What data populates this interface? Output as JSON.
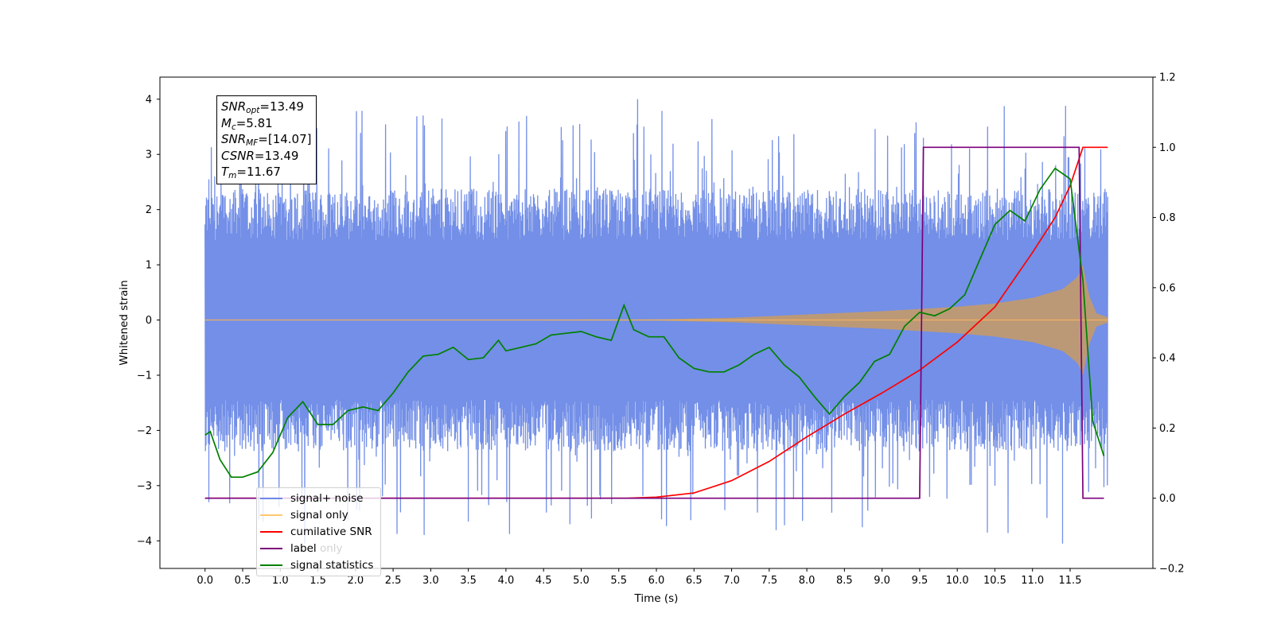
{
  "chart_data": {
    "type": "line",
    "xlabel": "Time (s)",
    "ylabel_left": "Whitened strain",
    "ylabel_right": "",
    "xlim": [
      -0.6,
      12.6
    ],
    "ylim_left": [
      -4.5,
      4.4
    ],
    "ylim_right": [
      -0.2,
      1.2
    ],
    "x_ticks": [
      "0.0",
      "0.5",
      "1.0",
      "1.5",
      "2.0",
      "2.5",
      "3.0",
      "3.5",
      "4.0",
      "4.5",
      "5.0",
      "5.5",
      "6.0",
      "6.5",
      "7.0",
      "7.5",
      "8.0",
      "8.5",
      "9.0",
      "9.5",
      "10.0",
      "10.5",
      "11.0",
      "11.5"
    ],
    "y_ticks_left": [
      "−4",
      "−3",
      "−2",
      "−1",
      "0",
      "1",
      "2",
      "3",
      "4"
    ],
    "y_ticks_right": [
      "−0.2",
      "0.0",
      "0.2",
      "0.4",
      "0.6",
      "0.8",
      "1.0",
      "1.2"
    ],
    "grid": false,
    "legend_position": "lower-left",
    "annotation": {
      "lines": [
        {
          "base": "SNR",
          "sub": "opt",
          "value": "=13.49"
        },
        {
          "base": "M",
          "sub": "c",
          "value": "=5.81"
        },
        {
          "base": "SNR",
          "sub": "MF",
          "value": "=[14.07]"
        },
        {
          "base": "CSNR",
          "sub": "",
          "value": "=13.49"
        },
        {
          "base": "T",
          "sub": "m",
          "value": "=11.67"
        }
      ]
    },
    "series": [
      {
        "name": "signal+ noise",
        "axis": "left",
        "color": "#6c89e6",
        "kind": "noise-band",
        "x_start": 0.0,
        "x_end": 12.0,
        "envelope_typical": 1.7,
        "extreme_peaks": [
          [
            0.05,
            2.55
          ],
          [
            3.15,
            3.65
          ],
          [
            4.98,
            3.55
          ],
          [
            9.55,
            3.3
          ],
          [
            11.44,
            3.88
          ],
          [
            0.05,
            -3.3
          ],
          [
            3.5,
            -3.65
          ],
          [
            4.85,
            -3.7
          ],
          [
            10.4,
            -3.85
          ],
          [
            11.4,
            -4.05
          ]
        ]
      },
      {
        "name": "signal only",
        "axis": "left",
        "color": "#c09a70",
        "kind": "chirp",
        "x_start": 0.0,
        "x_end": 12.0,
        "amplitude": [
          [
            0.0,
            0.0
          ],
          [
            6.0,
            0.01
          ],
          [
            7.0,
            0.04
          ],
          [
            8.0,
            0.1
          ],
          [
            9.0,
            0.16
          ],
          [
            10.0,
            0.24
          ],
          [
            10.5,
            0.3
          ],
          [
            11.0,
            0.4
          ],
          [
            11.4,
            0.56
          ],
          [
            11.6,
            0.78
          ],
          [
            11.67,
            1.0
          ],
          [
            11.75,
            0.45
          ],
          [
            11.85,
            0.12
          ],
          [
            12.0,
            0.05
          ]
        ]
      },
      {
        "name": "cumilative SNR",
        "axis": "right",
        "color": "#ff0000",
        "x": [
          0.0,
          5.6,
          6.0,
          6.5,
          7.0,
          7.5,
          8.0,
          8.5,
          9.0,
          9.5,
          10.0,
          10.5,
          11.0,
          11.3,
          11.5,
          11.67,
          12.0
        ],
        "y": [
          0.0,
          0.0,
          0.003,
          0.015,
          0.05,
          0.105,
          0.175,
          0.24,
          0.3,
          0.365,
          0.445,
          0.545,
          0.7,
          0.8,
          0.89,
          1.0,
          1.0
        ]
      },
      {
        "name": "label",
        "axis": "right",
        "color": "#7b007b",
        "x": [
          0.0,
          9.5,
          9.55,
          11.62,
          11.67,
          11.95
        ],
        "y": [
          0.0,
          0.0,
          1.0,
          1.0,
          0.0,
          0.0
        ]
      },
      {
        "name": "signal statistics",
        "axis": "right",
        "color": "#008000",
        "x": [
          0.0,
          0.07,
          0.2,
          0.35,
          0.5,
          0.7,
          0.9,
          1.1,
          1.3,
          1.5,
          1.7,
          1.9,
          2.1,
          2.3,
          2.5,
          2.7,
          2.9,
          3.1,
          3.3,
          3.5,
          3.7,
          3.9,
          4.0,
          4.2,
          4.4,
          4.6,
          4.8,
          5.0,
          5.2,
          5.4,
          5.57,
          5.7,
          5.9,
          6.1,
          6.3,
          6.5,
          6.7,
          6.9,
          7.1,
          7.3,
          7.5,
          7.7,
          7.9,
          8.1,
          8.3,
          8.5,
          8.7,
          8.9,
          9.1,
          9.3,
          9.5,
          9.7,
          9.9,
          10.1,
          10.3,
          10.5,
          10.7,
          10.9,
          11.1,
          11.3,
          11.5,
          11.67,
          11.8,
          11.95
        ],
        "y": [
          0.18,
          0.19,
          0.11,
          0.06,
          0.06,
          0.075,
          0.13,
          0.23,
          0.275,
          0.21,
          0.21,
          0.25,
          0.26,
          0.25,
          0.3,
          0.36,
          0.405,
          0.41,
          0.43,
          0.395,
          0.4,
          0.45,
          0.42,
          0.43,
          0.44,
          0.465,
          0.47,
          0.475,
          0.46,
          0.45,
          0.55,
          0.48,
          0.46,
          0.46,
          0.4,
          0.37,
          0.36,
          0.36,
          0.38,
          0.41,
          0.43,
          0.38,
          0.345,
          0.29,
          0.24,
          0.29,
          0.33,
          0.39,
          0.41,
          0.49,
          0.53,
          0.52,
          0.54,
          0.58,
          0.68,
          0.78,
          0.82,
          0.79,
          0.88,
          0.94,
          0.91,
          0.62,
          0.22,
          0.12
        ]
      }
    ],
    "legend_extra": [
      "label only"
    ]
  }
}
